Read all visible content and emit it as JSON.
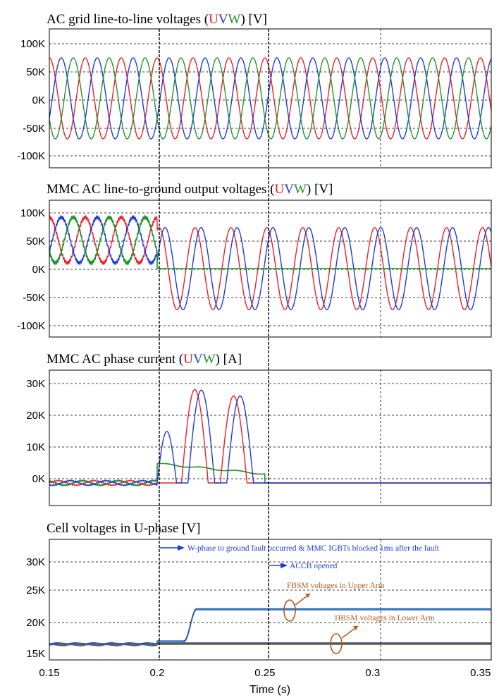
{
  "chart_data": [
    {
      "type": "line",
      "title_prefix": "AC grid line-to-line voltages (",
      "title_u": "U",
      "title_v": "V",
      "title_w": "W",
      "title_suffix": ") [V]",
      "yticks": [
        "100K",
        "50K",
        "0K",
        "-50K",
        "-100K"
      ],
      "ylim": [
        -120000,
        120000
      ],
      "series": [
        {
          "color": "#e8202a",
          "amplitude": 70000,
          "frequency_hz": 60,
          "phase_deg": 90
        },
        {
          "color": "#1f3bd6",
          "amplitude": 70000,
          "frequency_hz": 60,
          "phase_deg": -30
        },
        {
          "color": "#23922b",
          "amplitude": 70000,
          "frequency_hz": 60,
          "phase_deg": 210
        }
      ]
    },
    {
      "type": "line",
      "title_prefix": "MMC AC line-to-ground output voltages (",
      "title_u": "U",
      "title_v": "V",
      "title_w": "W",
      "title_suffix": ") [V]",
      "yticks": [
        "100K",
        "50K",
        "0K",
        "-50K",
        "-100K"
      ],
      "ylim": [
        -120000,
        120000
      ],
      "pre_fault_offset": 50000,
      "pre_fault_amplitude": 40000,
      "post_fault_amplitude": 72000,
      "w_post_fault_value": 0
    },
    {
      "type": "line",
      "title_prefix": "MMC AC phase current (",
      "title_u": "U",
      "title_v": "V",
      "title_w": "W",
      "title_suffix": ") [A]",
      "yticks": [
        "30K",
        "20K",
        "10K",
        "0K"
      ],
      "ylim": [
        -7000,
        35000
      ],
      "pre_fault_amplitude": 700,
      "peaks": [
        {
          "series": "V",
          "time": 0.2045,
          "value": 16000
        },
        {
          "series": "U",
          "time": 0.2175,
          "value": 29000
        },
        {
          "series": "V",
          "time": 0.2205,
          "value": 28800
        },
        {
          "series": "U",
          "time": 0.2355,
          "value": 27000
        },
        {
          "series": "V",
          "time": 0.2385,
          "value": 27000
        }
      ],
      "w_dc_start": 6000,
      "w_dc_end": 2800,
      "current_zero_after": 0.25
    },
    {
      "type": "line",
      "title": "Cell voltages in U-phase [V]",
      "yticks": [
        "30K",
        "25K",
        "20K",
        "15K"
      ],
      "ylim": [
        14000,
        34000
      ],
      "pre_fault_value": 16600,
      "fbsm_final_value": 22400,
      "hbsm_value": 16700,
      "annotations": {
        "fault": "W-phase to ground fault occurred & MMC IGBTs blocked 1ms after the fault",
        "accb": "ACCB opened",
        "fbsm": "FBSM voltages in Upper Arm",
        "hbsm": "HBSM voltages in Lower Arm"
      }
    }
  ],
  "x_axis": {
    "xlabel": "Time (s)",
    "xlim": [
      0.15,
      0.355
    ],
    "ticks": [
      0.15,
      0.2,
      0.25,
      0.3,
      0.35
    ],
    "tick_labels": [
      "0.15",
      "0.2",
      "0.25",
      "0.3",
      "0.35"
    ]
  },
  "colors": {
    "U": "#e8202a",
    "V": "#1f3bd6",
    "W": "#23922b",
    "annotation": "#1f3bd6",
    "marker": "#b35a1f"
  }
}
